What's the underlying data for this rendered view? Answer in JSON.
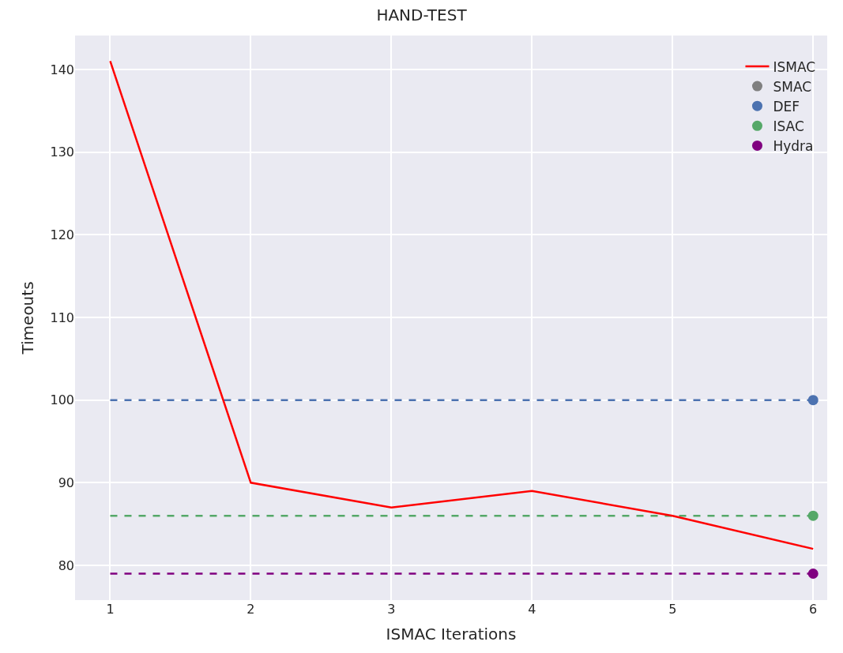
{
  "chart_data": {
    "type": "line",
    "title": "HAND-TEST",
    "xlabel": "ISMAC Iterations",
    "ylabel": "Timeouts",
    "x": [
      1,
      2,
      3,
      4,
      5,
      6
    ],
    "series": [
      {
        "name": "ISMAC",
        "color": "#ff0000",
        "values": [
          141,
          90,
          87,
          89,
          86,
          82
        ],
        "marker": "none"
      },
      {
        "name": "SMAC",
        "type": "scatter",
        "color": "#808080",
        "values": [
          null,
          null,
          null,
          null,
          null,
          null
        ],
        "marker": "circle"
      },
      {
        "name": "DEF",
        "type": "scatter",
        "color": "#4c72b0",
        "values": [
          null,
          null,
          null,
          null,
          null,
          100
        ],
        "marker": "circle"
      },
      {
        "name": "ISAC",
        "type": "scatter",
        "color": "#55a868",
        "values": [
          null,
          null,
          null,
          null,
          null,
          86
        ],
        "marker": "circle"
      },
      {
        "name": "Hydra",
        "type": "scatter",
        "color": "#800080",
        "values": [
          null,
          null,
          null,
          null,
          null,
          79
        ],
        "marker": "circle"
      }
    ],
    "ref_lines": [
      {
        "axis": "y",
        "value": 100,
        "color": "#4c72b0",
        "line_style": "dashed"
      },
      {
        "axis": "y",
        "value": 86,
        "color": "#55a868",
        "line_style": "dashed"
      },
      {
        "axis": "y",
        "value": 79,
        "color": "#800080",
        "line_style": "dashed"
      }
    ],
    "xlim": [
      0.75,
      6.1
    ],
    "xticks": [
      1,
      2,
      3,
      4,
      5,
      6
    ],
    "ylim": [
      75.8,
      144.1
    ],
    "yticks": [
      80,
      90,
      100,
      110,
      120,
      130,
      140
    ],
    "grid": true,
    "legend": "top right",
    "line_style": "solid"
  }
}
